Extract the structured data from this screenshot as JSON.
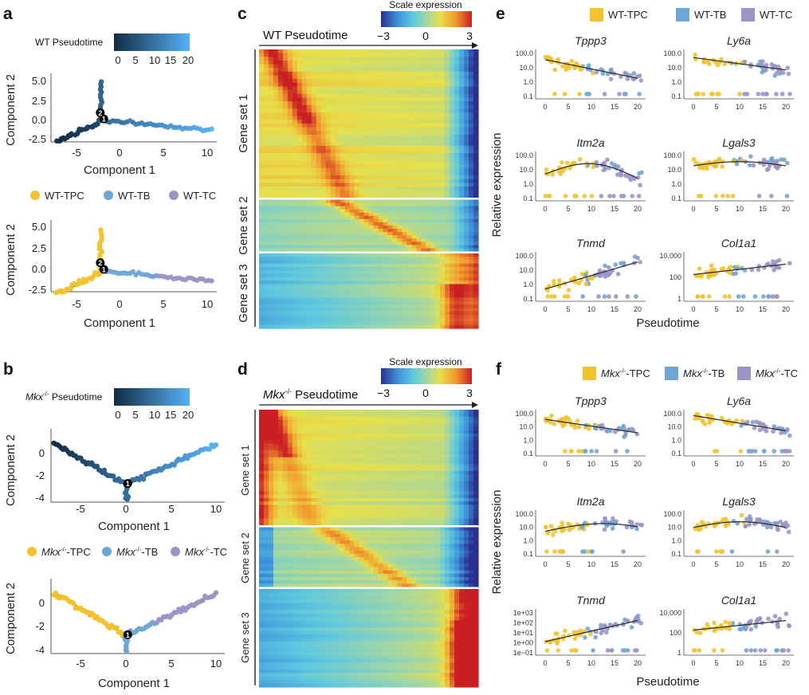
{
  "panels": {
    "a": {
      "label": "a"
    },
    "b": {
      "label": "b"
    },
    "c": {
      "label": "c"
    },
    "d": {
      "label": "d"
    },
    "e": {
      "label": "e"
    },
    "f": {
      "label": "f"
    }
  },
  "colors": {
    "tpc": "#f2c32f",
    "tb": "#6ea6d6",
    "tc": "#9d93c7",
    "curve": "#333333",
    "pseudo_low": "#132b43",
    "pseudo_high": "#56b1f7"
  },
  "chart_data": [
    {
      "id": "a-top",
      "type": "scatter",
      "colorbar": {
        "title": "WT Pseudotime",
        "ticks": [
          "0",
          "5",
          "10",
          "15",
          "20"
        ]
      },
      "xlabel": "Component 1",
      "ylabel": "Component 2",
      "xticks": [
        "-5",
        "0",
        "5",
        "10"
      ],
      "yticks": [
        "5.0",
        "2.5",
        "0.0",
        "-2.5"
      ],
      "xlim": [
        -8,
        11
      ],
      "ylim": [
        -3,
        6
      ],
      "branch_nodes": [
        "2",
        "1"
      ],
      "points": [
        [
          -7.3,
          -2.6
        ],
        [
          -6.8,
          -2.3
        ],
        [
          -6.3,
          -2.2
        ],
        [
          -5.8,
          -1.9
        ],
        [
          -5.2,
          -1.7
        ],
        [
          -4.8,
          -1.3
        ],
        [
          -4.2,
          -1.0
        ],
        [
          -3.8,
          -0.8
        ],
        [
          -3.3,
          -0.3
        ],
        [
          -2.9,
          0.0
        ],
        [
          -2.6,
          0.5
        ],
        [
          -2.3,
          1.5
        ],
        [
          -2.2,
          2.5
        ],
        [
          -2.1,
          3.5
        ],
        [
          -2.2,
          4.2
        ],
        [
          -2.0,
          4.8
        ],
        [
          -2.3,
          5.0
        ],
        [
          -1.9,
          4.4
        ],
        [
          -1.6,
          0.3
        ],
        [
          -1.0,
          0.2
        ],
        [
          0.0,
          0.0
        ],
        [
          1.2,
          -0.1
        ],
        [
          2.5,
          -0.3
        ],
        [
          4.0,
          -0.5
        ],
        [
          5.5,
          -0.6
        ],
        [
          6.8,
          -0.7
        ],
        [
          7.5,
          -0.5
        ],
        [
          8.2,
          -0.8
        ],
        [
          9.0,
          -0.7
        ],
        [
          10.3,
          -1.0
        ]
      ]
    },
    {
      "id": "a-bottom",
      "type": "scatter",
      "legend": [
        "WT-TPC",
        "WT-TB",
        "WT-TC"
      ],
      "xlabel": "Component 1",
      "ylabel": "Component 2",
      "xticks": [
        "-5",
        "0",
        "5",
        "10"
      ],
      "yticks": [
        "5.0",
        "2.5",
        "0.0",
        "-2.5"
      ],
      "xlim": [
        -8,
        11
      ],
      "ylim": [
        -3,
        6
      ],
      "branch_nodes": [
        "2",
        "1"
      ]
    },
    {
      "id": "b-top",
      "type": "scatter",
      "colorbar": {
        "title_prefix": "Mkx",
        "title_sup": "-/-",
        "title_suffix": " Pseudotime",
        "ticks": [
          "0",
          "5",
          "10",
          "15",
          "20"
        ]
      },
      "xlabel": "Component 1",
      "ylabel": "Component 2",
      "xticks": [
        "-5",
        "0",
        "5",
        "10"
      ],
      "yticks": [
        "0",
        "-2",
        "-4"
      ],
      "xlim": [
        -8,
        11
      ],
      "ylim": [
        -4.5,
        2
      ],
      "branch_nodes": [
        "1"
      ]
    },
    {
      "id": "b-bottom",
      "type": "scatter",
      "legend_prefix": "Mkx",
      "legend_sup": "-/-",
      "legend": [
        "-TPC",
        "-TB",
        "-TC"
      ],
      "xlabel": "Component 1",
      "ylabel": "Component 2",
      "xticks": [
        "-5",
        "0",
        "5",
        "10"
      ],
      "yticks": [
        "0",
        "-2",
        "-4"
      ],
      "xlim": [
        -8,
        11
      ],
      "ylim": [
        -4.5,
        2
      ],
      "branch_nodes": [
        "1"
      ]
    },
    {
      "id": "c",
      "type": "heatmap",
      "title": "WT Pseudotime",
      "colorbar": {
        "title": "Scale expression",
        "ticks": [
          "−3",
          "0",
          "3"
        ],
        "range": [
          -3,
          3
        ]
      },
      "gene_sets": [
        "Gene set 1",
        "Gene set 2",
        "Gene set 3"
      ]
    },
    {
      "id": "d",
      "type": "heatmap",
      "title_prefix": "Mkx",
      "title_sup": "-/-",
      "title_suffix": " Pseudotime",
      "colorbar": {
        "title": "Scale expression",
        "ticks": [
          "−3",
          "0",
          "3"
        ],
        "range": [
          -3,
          3
        ]
      },
      "gene_sets": [
        "Gene set 1",
        "Gene set 2",
        "Gene set 3"
      ]
    },
    {
      "id": "e",
      "type": "scatter",
      "legend": [
        "WT-TPC",
        "WT-TB",
        "WT-TC"
      ],
      "ylabel": "Relative expression",
      "xlabel": "Pseudotime",
      "xticks": [
        "0",
        "5",
        "10",
        "15",
        "20"
      ],
      "genes": [
        {
          "name": "Tppp3",
          "yticks": [
            "100.0",
            "10.0",
            "1.0",
            "0.1"
          ]
        },
        {
          "name": "Ly6a",
          "yticks": [
            "100.0",
            "10.0",
            "1.0",
            "0.1"
          ]
        },
        {
          "name": "Itm2a",
          "yticks": [
            "100.0",
            "10.0",
            "1.0",
            "0.1"
          ]
        },
        {
          "name": "Lgals3",
          "yticks": [
            "100.0",
            "10.0",
            "1.0",
            "0.1"
          ]
        },
        {
          "name": "Tnmd",
          "yticks": [
            "100.0",
            "10.0",
            "1.0",
            "0.1"
          ]
        },
        {
          "name": "Col1a1",
          "yticks": [
            "10,000",
            "100",
            "1"
          ]
        }
      ]
    },
    {
      "id": "f",
      "type": "scatter",
      "legend_prefix": "Mkx",
      "legend_sup": "-/-",
      "legend": [
        "-TPC",
        "-TB",
        "-TC"
      ],
      "ylabel": "Relative expression",
      "xlabel": "Pseudotime",
      "xticks": [
        "0",
        "5",
        "10",
        "15",
        "20"
      ],
      "genes": [
        {
          "name": "Tppp3",
          "yticks": [
            "100.0",
            "10.0",
            "1.0",
            "0.1"
          ]
        },
        {
          "name": "Ly6a",
          "yticks": [
            "100.0",
            "10.0",
            "1.0",
            "0.1"
          ]
        },
        {
          "name": "Itm2a",
          "yticks": [
            "100.0",
            "10.0",
            "1.0",
            "0.1"
          ]
        },
        {
          "name": "Lgals3",
          "yticks": [
            "100.0",
            "10.0",
            "1.0",
            "0.1"
          ]
        },
        {
          "name": "Tnmd",
          "yticks": [
            "1e+03",
            "1e+02",
            "1e+01",
            "1e+00",
            "1e−01"
          ]
        },
        {
          "name": "Col1a1",
          "yticks": [
            "10,000",
            "100",
            "1"
          ]
        }
      ]
    }
  ]
}
